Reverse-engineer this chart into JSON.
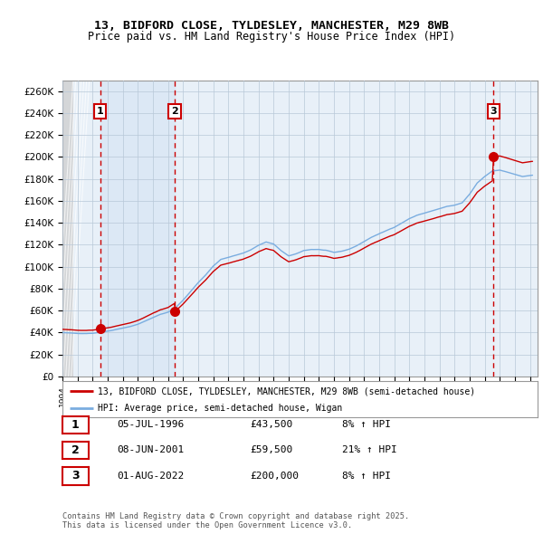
{
  "title_line1": "13, BIDFORD CLOSE, TYLDESLEY, MANCHESTER, M29 8WB",
  "title_line2": "Price paid vs. HM Land Registry's House Price Index (HPI)",
  "ylabel_ticks": [
    "£0",
    "£20K",
    "£40K",
    "£60K",
    "£80K",
    "£100K",
    "£120K",
    "£140K",
    "£160K",
    "£180K",
    "£200K",
    "£220K",
    "£240K",
    "£260K"
  ],
  "ytick_values": [
    0,
    20000,
    40000,
    60000,
    80000,
    100000,
    120000,
    140000,
    160000,
    180000,
    200000,
    220000,
    240000,
    260000
  ],
  "xmin": 1994.0,
  "xmax": 2025.5,
  "ymin": 0,
  "ymax": 270000,
  "sale_dates": [
    1996.51,
    2001.44,
    2022.58
  ],
  "sale_prices": [
    43500,
    59500,
    200000
  ],
  "sale_labels": [
    "1",
    "2",
    "3"
  ],
  "legend_label_red": "13, BIDFORD CLOSE, TYLDESLEY, MANCHESTER, M29 8WB (semi-detached house)",
  "legend_label_blue": "HPI: Average price, semi-detached house, Wigan",
  "table_rows": [
    [
      "1",
      "05-JUL-1996",
      "£43,500",
      "8% ↑ HPI"
    ],
    [
      "2",
      "08-JUN-2001",
      "£59,500",
      "21% ↑ HPI"
    ],
    [
      "3",
      "01-AUG-2022",
      "£200,000",
      "8% ↑ HPI"
    ]
  ],
  "footnote": "Contains HM Land Registry data © Crown copyright and database right 2025.\nThis data is licensed under the Open Government Licence v3.0.",
  "red_color": "#cc0000",
  "blue_color": "#7aade0",
  "shade_color": "#dce8f5",
  "grid_color": "#b8c8d8",
  "bg_plot_color": "#e8f0f8",
  "dashed_vline_color": "#cc0000",
  "hatch_bg": "#c8c8c8"
}
